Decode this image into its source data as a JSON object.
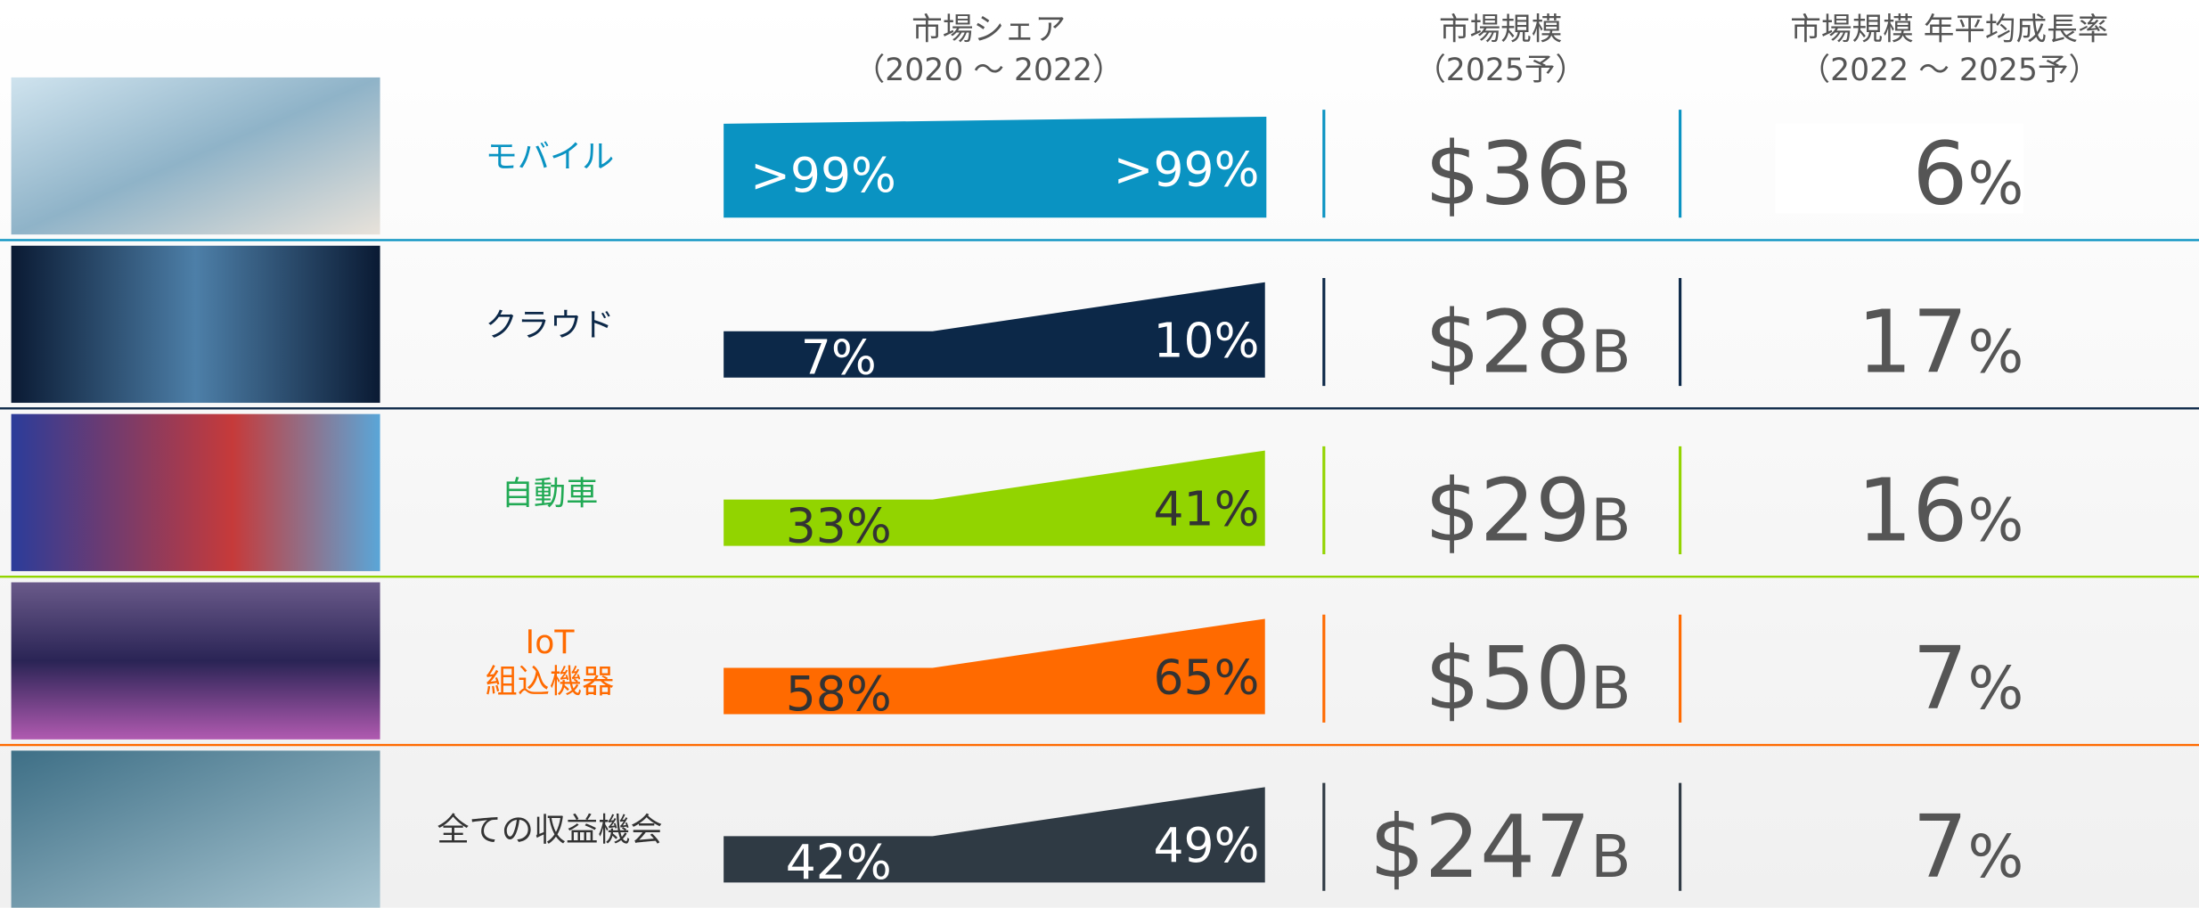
{
  "header": {
    "columns": [
      {
        "title": "市場シェア",
        "subtitle": "（2020 ～ 2022）"
      },
      {
        "title": "市場規模",
        "subtitle": "（2025予）"
      },
      {
        "title": "市場規模 年平均成長率",
        "subtitle": "（2022 ～ 2025予）"
      }
    ]
  },
  "rows": [
    {
      "label": [
        "モバイル"
      ],
      "share_2020": ">99%",
      "share_2022": ">99%",
      "size": "$36",
      "size_unit": "B",
      "growth": "6",
      "growth_unit": "%",
      "color": "#0a93c2"
    },
    {
      "label": [
        "クラウド"
      ],
      "share_2020": "7%",
      "share_2022": "10%",
      "size": "$28",
      "size_unit": "B",
      "growth": "17",
      "growth_unit": "%",
      "color": "#0c2848"
    },
    {
      "label": [
        "自動車"
      ],
      "share_2020": "33%",
      "share_2022": "41%",
      "size": "$29",
      "size_unit": "B",
      "growth": "16",
      "growth_unit": "%",
      "color": "#92d400"
    },
    {
      "label": [
        "IoT",
        "組込機器"
      ],
      "share_2020": "58%",
      "share_2022": "65%",
      "size": "$50",
      "size_unit": "B",
      "growth": "7",
      "growth_unit": "%",
      "color": "#ff6a00"
    },
    {
      "label": [
        "全ての収益機会"
      ],
      "share_2020": "42%",
      "share_2022": "49%",
      "size": "$247",
      "size_unit": "B",
      "growth": "7",
      "growth_unit": "%",
      "color": "#2f3a44"
    }
  ]
}
